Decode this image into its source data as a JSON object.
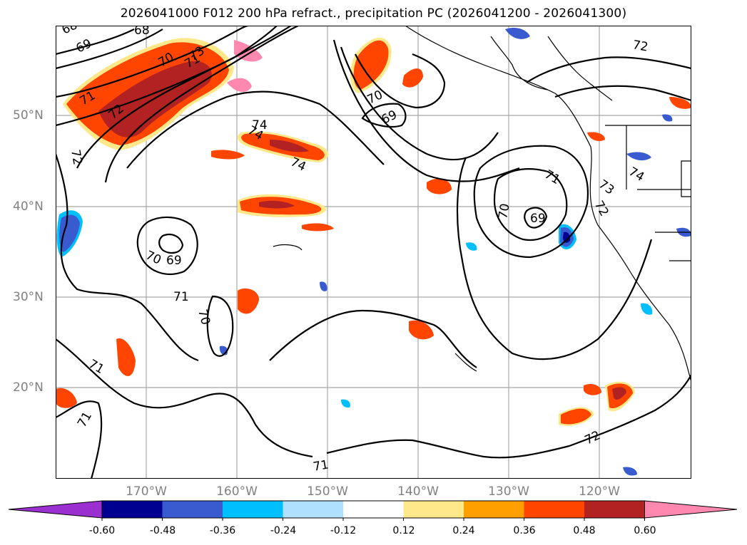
{
  "title": "2026041000 F012 200 hPa refract., precipitation PC (2026041200 - 2026041300)",
  "lat_labels": [
    "50°N",
    "40°N",
    "30°N",
    "20°N"
  ],
  "lon_labels": [
    "170°W",
    "160°W",
    "150°W",
    "140°W",
    "130°W",
    "120°W"
  ],
  "contour_labels": [
    "68",
    "68",
    "69",
    "70",
    "71",
    "71",
    "72",
    "72",
    "72",
    "73",
    "74",
    "74",
    "74",
    "70",
    "69",
    "69",
    "70",
    "71",
    "70",
    "71",
    "70",
    "69",
    "71",
    "73",
    "72",
    "74",
    "72",
    "71",
    "71"
  ],
  "colorbar": {
    "ticks": [
      "-0.60",
      "-0.48",
      "-0.36",
      "-0.24",
      "-0.12",
      "0.12",
      "0.24",
      "0.36",
      "0.48",
      "0.60"
    ],
    "colors": [
      "#9b30d0",
      "#000090",
      "#3a5bd0",
      "#00bfff",
      "#b0e0ff",
      "#ffffff",
      "#ffe88a",
      "#ffa000",
      "#ff4500",
      "#b22222",
      "#ff88b0"
    ]
  }
}
